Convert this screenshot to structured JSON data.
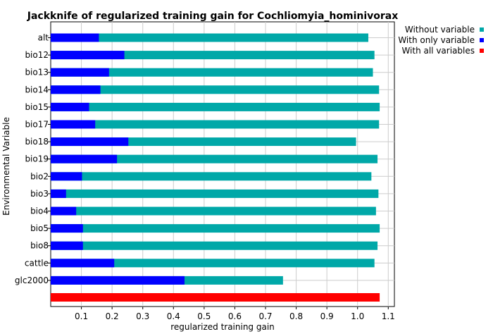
{
  "chart_data": {
    "type": "bar",
    "orientation": "horizontal",
    "title": "Jackknife of regularized training gain for Cochliomyia_hominivorax",
    "xlabel": "regularized training gain",
    "ylabel": "Environmental Variable",
    "xlim": [
      0,
      1.12
    ],
    "xticks": [
      0.1,
      0.2,
      0.3,
      0.4,
      0.5,
      0.6,
      0.7,
      0.8,
      0.9,
      1.0,
      1.1
    ],
    "grid": true,
    "legend_position": "right",
    "categories": [
      "alt",
      "bio12",
      "bio13",
      "bio14",
      "bio15",
      "bio17",
      "bio18",
      "bio19",
      "bio2",
      "bio3",
      "bio4",
      "bio5",
      "bio8",
      "cattle",
      "glc2000"
    ],
    "series": [
      {
        "name": "Without variable",
        "color": "#00a8a8",
        "values": [
          1.035,
          1.055,
          1.05,
          1.07,
          1.072,
          1.07,
          0.995,
          1.065,
          1.045,
          1.068,
          1.06,
          1.072,
          1.065,
          1.055,
          0.757
        ]
      },
      {
        "name": "With only variable",
        "color": "#0000ff",
        "values": [
          0.157,
          0.24,
          0.19,
          0.162,
          0.125,
          0.145,
          0.253,
          0.216,
          0.102,
          0.05,
          0.083,
          0.105,
          0.105,
          0.207,
          0.436
        ]
      }
    ],
    "all_variables": {
      "name": "With all variables",
      "color": "#ff0000",
      "value": 1.072
    }
  }
}
